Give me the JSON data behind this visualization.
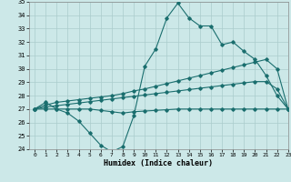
{
  "xlabel": "Humidex (Indice chaleur)",
  "background_color": "#cce8e8",
  "grid_color": "#aacccc",
  "line_color": "#1a6e6e",
  "x_values": [
    0,
    1,
    2,
    3,
    4,
    5,
    6,
    7,
    8,
    9,
    10,
    11,
    12,
    13,
    14,
    15,
    16,
    17,
    18,
    19,
    20,
    21,
    22,
    23
  ],
  "line1_y": [
    27.0,
    27.5,
    27.0,
    26.7,
    26.1,
    25.2,
    24.3,
    23.8,
    24.2,
    26.5,
    30.2,
    31.5,
    33.8,
    34.9,
    33.8,
    33.2,
    33.2,
    31.8,
    32.0,
    31.3,
    30.7,
    29.5,
    28.0,
    27.0
  ],
  "line2_y": [
    27.0,
    27.3,
    27.5,
    27.6,
    27.7,
    27.8,
    27.9,
    28.0,
    28.15,
    28.35,
    28.5,
    28.7,
    28.9,
    29.1,
    29.3,
    29.5,
    29.7,
    29.9,
    30.1,
    30.3,
    30.5,
    30.7,
    30.0,
    27.0
  ],
  "line3_y": [
    27.0,
    27.15,
    27.25,
    27.35,
    27.45,
    27.55,
    27.65,
    27.75,
    27.85,
    27.95,
    28.05,
    28.15,
    28.25,
    28.35,
    28.45,
    28.55,
    28.65,
    28.75,
    28.85,
    28.95,
    29.05,
    29.05,
    28.5,
    27.0
  ],
  "line4_y": [
    27.0,
    27.0,
    27.0,
    27.0,
    27.0,
    27.0,
    26.9,
    26.8,
    26.7,
    26.8,
    26.85,
    26.9,
    26.95,
    27.0,
    27.0,
    27.0,
    27.0,
    27.0,
    27.0,
    27.0,
    27.0,
    27.0,
    27.0,
    27.0
  ],
  "ylim": [
    24,
    35
  ],
  "xlim": [
    -0.5,
    23
  ],
  "yticks": [
    24,
    25,
    26,
    27,
    28,
    29,
    30,
    31,
    32,
    33,
    34,
    35
  ],
  "xticks": [
    0,
    1,
    2,
    3,
    4,
    5,
    6,
    7,
    8,
    9,
    10,
    11,
    12,
    13,
    14,
    15,
    16,
    17,
    18,
    19,
    20,
    21,
    22,
    23
  ]
}
